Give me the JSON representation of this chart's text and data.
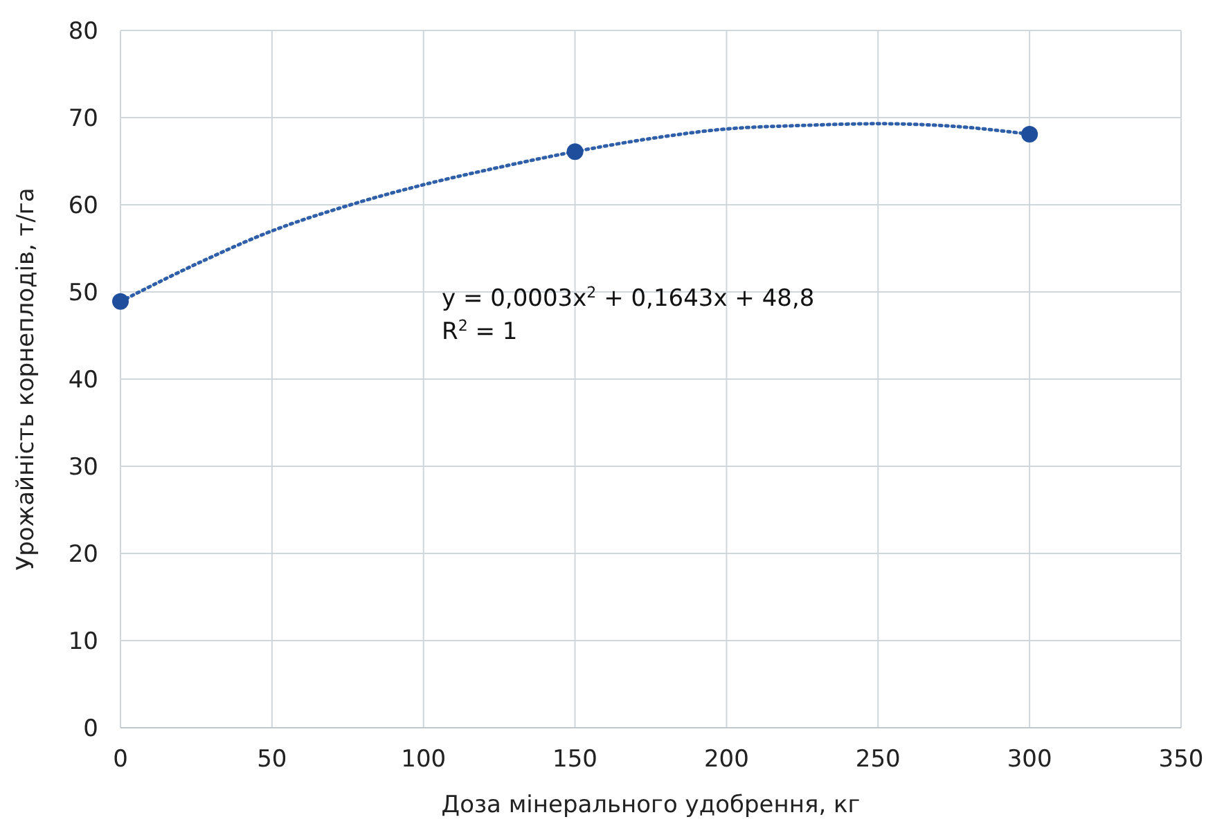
{
  "chart_data": {
    "type": "scatter",
    "xlabel": "Доза мінерального удобрення, кг",
    "ylabel": "Урожайність корнеплодів, т/га",
    "series": [
      {
        "color": "#1f4e9c",
        "x": [
          0,
          150,
          300
        ],
        "values": [
          48.9,
          66.1,
          68.1
        ],
        "marker": "circle"
      },
      {
        "type": "line",
        "color": "#2e5fa8",
        "x": [
          0,
          25,
          50,
          75,
          100,
          125,
          150,
          175,
          200,
          225,
          250,
          275,
          300
        ],
        "values": [
          48.9,
          53.2,
          57.0,
          59.9,
          62.3,
          64.3,
          66.1,
          67.6,
          68.7,
          69.1,
          69.3,
          69.0,
          68.1
        ],
        "marker": "none",
        "line_style": "dotted"
      }
    ],
    "xlim": [
      0,
      350
    ],
    "xticks": [
      0,
      50,
      100,
      150,
      200,
      250,
      300,
      350
    ],
    "ylim": [
      0,
      80
    ],
    "yticks": [
      0,
      10,
      20,
      30,
      40,
      50,
      60,
      70,
      80
    ],
    "grid": true,
    "annotations": [
      "y =  0,0003x$^{2}$ + 0,1643x + 48,8",
      "R$^{2}$ = 1"
    ]
  }
}
